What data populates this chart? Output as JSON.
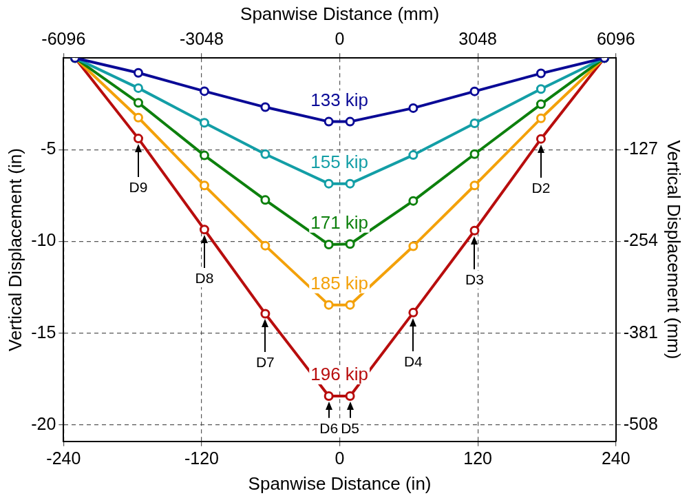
{
  "chart_data": {
    "type": "line",
    "xlabel": "Spanwise Distance (in)",
    "x2label": "Spanwise Distance (mm)",
    "ylabel": "Vertical Displacement (in)",
    "y2label": "Vertical Displacement (mm)",
    "x": [
      -230,
      -175,
      -117.6,
      -64.7,
      -9.5,
      9,
      63.9,
      117.2,
      174.9,
      230
    ],
    "xlim": [
      -240,
      240
    ],
    "xticks": [
      -240,
      -120,
      0,
      120,
      240
    ],
    "x2lim": [
      -6096,
      6096
    ],
    "x2ticks": [
      -6096,
      -3048,
      0,
      3048,
      6096
    ],
    "ylim": [
      -20.9,
      0
    ],
    "yticks": [
      -20,
      -15,
      -10,
      -5
    ],
    "y2lim": [
      -530.86,
      0
    ],
    "y2ticks": [
      -508,
      -381,
      -254,
      -127
    ],
    "grid": true,
    "legend": false,
    "marker": "circle",
    "line_style": "solid",
    "series": [
      {
        "name": "133 kip",
        "color": "#0a0a96",
        "values": [
          0,
          -0.81,
          -1.81,
          -2.68,
          -3.47,
          -3.47,
          -2.73,
          -1.82,
          -0.84,
          0
        ]
      },
      {
        "name": "155 kip",
        "color": "#139ea6",
        "values": [
          0,
          -1.64,
          -3.53,
          -5.24,
          -6.85,
          -6.85,
          -5.29,
          -3.56,
          -1.69,
          0
        ]
      },
      {
        "name": "171 kip",
        "color": "#0d800d",
        "values": [
          0,
          -2.44,
          -5.31,
          -7.74,
          -10.17,
          -10.14,
          -7.79,
          -5.24,
          -2.52,
          0
        ]
      },
      {
        "name": "185 kip",
        "color": "#f3a10a",
        "values": [
          0,
          -3.25,
          -6.95,
          -10.23,
          -13.46,
          -13.46,
          -10.26,
          -6.95,
          -3.29,
          0
        ]
      },
      {
        "name": "196 kip",
        "color": "#b80d0d",
        "values": [
          0,
          -4.39,
          -9.35,
          -13.94,
          -18.43,
          -18.43,
          -13.88,
          -9.41,
          -4.41,
          0
        ]
      }
    ],
    "annotations": [
      {
        "text": "D9",
        "x": -175,
        "y": -4.39
      },
      {
        "text": "D8",
        "x": -117.6,
        "y": -9.35
      },
      {
        "text": "D7",
        "x": -64.7,
        "y": -13.94
      },
      {
        "text": "D6",
        "x": -9.5,
        "y": -18.43
      },
      {
        "text": "D5",
        "x": 9,
        "y": -18.43
      },
      {
        "text": "D4",
        "x": 63.9,
        "y": -13.88
      },
      {
        "text": "D3",
        "x": 117.2,
        "y": -9.41
      },
      {
        "text": "D2",
        "x": 174.9,
        "y": -4.41
      }
    ]
  }
}
